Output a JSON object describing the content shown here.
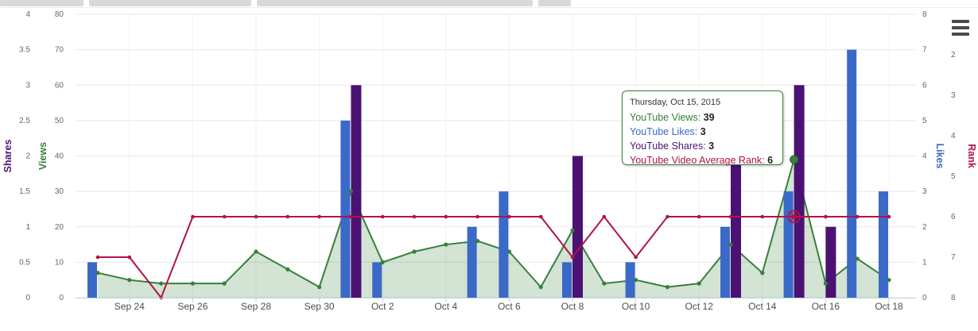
{
  "window": {
    "top_tabs": {
      "count": 4
    }
  },
  "context_menu": {
    "icon": "hamburger-icon"
  },
  "chart_data": {
    "type": "mixed",
    "x": [
      "Sep 23",
      "Sep 24",
      "Sep 25",
      "Sep 26",
      "Sep 27",
      "Sep 28",
      "Sep 29",
      "Sep 30",
      "Oct 1",
      "Oct 2",
      "Oct 3",
      "Oct 4",
      "Oct 5",
      "Oct 6",
      "Oct 7",
      "Oct 8",
      "Oct 9",
      "Oct 10",
      "Oct 11",
      "Oct 12",
      "Oct 13",
      "Oct 14",
      "Oct 15",
      "Oct 16",
      "Oct 17",
      "Oct 18"
    ],
    "x_axis_labels": [
      "Sep 24",
      "Sep 26",
      "Sep 28",
      "Sep 30",
      "Oct 2",
      "Oct 4",
      "Oct 6",
      "Oct 8",
      "Oct 10",
      "Oct 12",
      "Oct 14",
      "Oct 16",
      "Oct 18"
    ],
    "series": [
      {
        "name": "YouTube Views",
        "type": "area",
        "color": "#36803A",
        "fill_opacity": 0.22,
        "y_axis": "views",
        "values": [
          7,
          5,
          4,
          4,
          4,
          13,
          8,
          3,
          30,
          10,
          13,
          15,
          16,
          13,
          3,
          19,
          4,
          5,
          3,
          4,
          15,
          7,
          39,
          4,
          11,
          5
        ]
      },
      {
        "name": "YouTube Likes",
        "type": "bar",
        "color": "#3A69C7",
        "y_axis": "likes",
        "values": [
          1,
          0,
          0,
          0,
          0,
          0,
          0,
          0,
          5,
          1,
          0,
          0,
          2,
          3,
          0,
          1,
          0,
          1,
          0,
          0,
          2,
          0,
          3,
          0,
          7,
          3
        ]
      },
      {
        "name": "YouTube Shares",
        "type": "bar",
        "color": "#4B1273",
        "y_axis": "shares",
        "values": [
          0,
          0,
          0,
          0,
          0,
          0,
          0,
          0,
          3,
          0,
          0,
          0,
          0,
          0,
          0,
          2,
          0,
          0,
          0,
          0,
          2,
          0,
          3,
          1,
          0,
          0
        ]
      },
      {
        "name": "YouTube Video Average Rank",
        "type": "line",
        "color": "#B01349",
        "y_axis": "rank",
        "values": [
          7,
          7,
          8,
          6,
          6,
          6,
          6,
          6,
          6,
          6,
          6,
          6,
          6,
          6,
          6,
          7,
          6,
          7,
          6,
          6,
          6,
          6,
          6,
          6,
          6,
          6
        ]
      }
    ],
    "y_axes": [
      {
        "id": "shares",
        "title": "Shares",
        "color": "#4B1273",
        "side": "left",
        "min": 0,
        "max": 4,
        "tick_labels": [
          "0",
          "0.5",
          "1",
          "1.5",
          "2",
          "2.5",
          "3",
          "3.5",
          "4"
        ]
      },
      {
        "id": "views",
        "title": "Views",
        "color": "#36803A",
        "side": "left",
        "min": 0,
        "max": 80,
        "tick_labels": [
          "0",
          "10",
          "20",
          "30",
          "40",
          "50",
          "60",
          "70",
          "80"
        ]
      },
      {
        "id": "likes",
        "title": "Likes",
        "color": "#3A69C7",
        "side": "right",
        "min": 0,
        "max": 8,
        "tick_labels": [
          "0",
          "1",
          "2",
          "3",
          "4",
          "5",
          "6",
          "7",
          "8"
        ]
      },
      {
        "id": "rank",
        "title": "Rank",
        "color": "#B01349",
        "side": "right",
        "min": 1,
        "max": 8,
        "reversed": true,
        "tick_labels": [
          "2",
          "3",
          "4",
          "5",
          "6",
          "7",
          "8"
        ]
      }
    ],
    "grid": true,
    "legend": "none",
    "highlight": {
      "x_index": 22,
      "x_label": "Oct 15"
    }
  },
  "tooltip": {
    "header": "Thursday, Oct 15, 2015",
    "rows": [
      {
        "label": "YouTube Views",
        "value": "39",
        "color": "#36803A"
      },
      {
        "label": "YouTube Likes",
        "value": "3",
        "color": "#3A69C7"
      },
      {
        "label": "YouTube Shares",
        "value": "3",
        "color": "#4B1273"
      },
      {
        "label": "YouTube Video Average Rank",
        "value": "6",
        "color": "#B01349"
      }
    ]
  }
}
